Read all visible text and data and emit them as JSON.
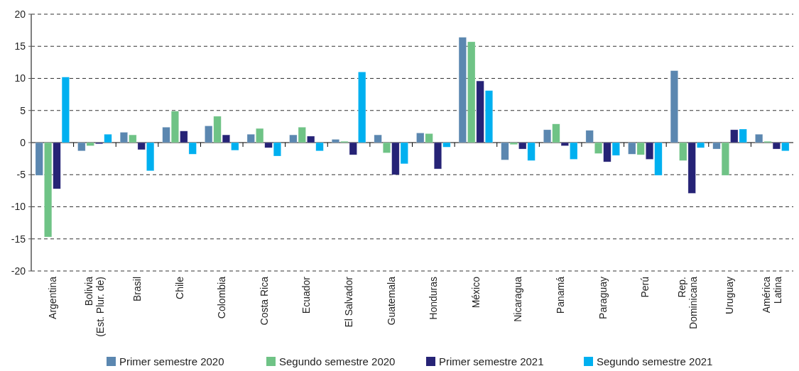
{
  "chart_data": {
    "type": "bar",
    "categories": [
      "Argentina",
      "Bolivia\n(Est. Plur. de)",
      "Brasil",
      "Chile",
      "Colombia",
      "Costa Rica",
      "Ecuador",
      "El Salvador",
      "Guatemala",
      "Honduras",
      "México",
      "Nicaragua",
      "Panamá",
      "Paraguay",
      "Perú",
      "Rep.\nDominicana",
      "Uruguay",
      "América\nLatina"
    ],
    "series": [
      {
        "name": "Primer semestre 2020",
        "color": "#5b87b0",
        "values": [
          -5.1,
          -1.3,
          1.6,
          2.4,
          2.6,
          1.3,
          1.2,
          0.5,
          1.2,
          1.5,
          16.4,
          -2.7,
          2.0,
          1.9,
          -1.8,
          11.2,
          -1.0,
          1.3
        ]
      },
      {
        "name": "Segundo semestre 2020",
        "color": "#6fc386",
        "values": [
          -14.7,
          -0.5,
          1.2,
          4.9,
          4.1,
          2.2,
          2.4,
          0.2,
          -1.6,
          1.4,
          15.7,
          -0.3,
          2.9,
          -1.7,
          -1.9,
          -2.8,
          -5.1,
          0.2
        ]
      },
      {
        "name": "Primer semestre 2021",
        "color": "#262376",
        "values": [
          -7.2,
          -0.2,
          -1.1,
          1.8,
          1.2,
          -0.8,
          1.0,
          -1.9,
          -5.0,
          -4.1,
          9.6,
          -1.0,
          -0.5,
          -3.0,
          -2.6,
          -7.9,
          2.0,
          -1.0
        ]
      },
      {
        "name": "Segundo semestre 2021",
        "color": "#00b0f0",
        "values": [
          10.2,
          1.3,
          -4.4,
          -1.8,
          -1.2,
          -2.1,
          -1.3,
          11.0,
          -3.3,
          -0.7,
          8.1,
          -2.8,
          -2.6,
          -2.0,
          -5.1,
          -0.8,
          2.1,
          -1.3
        ]
      }
    ],
    "ylim": [
      -20,
      20
    ],
    "yticks": [
      -20,
      -15,
      -10,
      -5,
      0,
      5,
      10,
      15,
      20
    ],
    "grid": "y",
    "legend": "bottom"
  }
}
